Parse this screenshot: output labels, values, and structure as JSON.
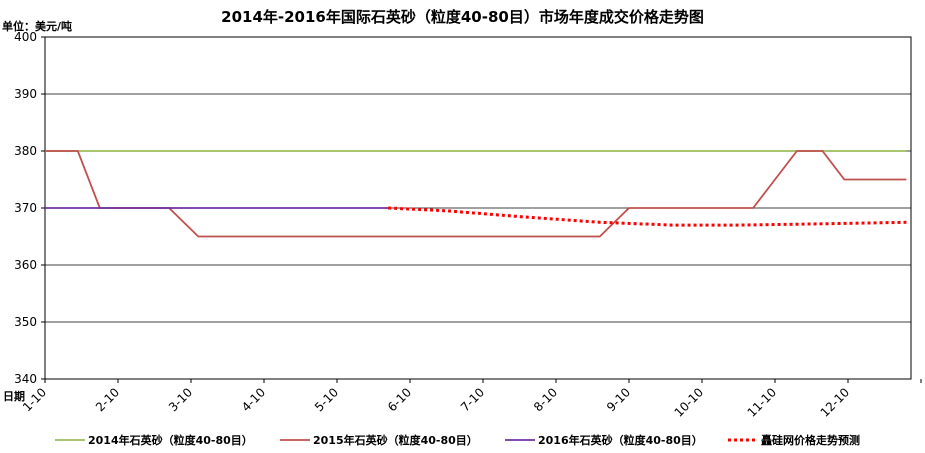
{
  "chart_data": {
    "type": "line",
    "title": "2014年-2016年国际石英砂（粒度40-80目）市场年度成交价格走势图",
    "ylabel": "单位：美元/吨",
    "xlabel": "日期",
    "ylim": [
      340,
      400
    ],
    "yticks": [
      "340",
      "350",
      "360",
      "370",
      "380",
      "390",
      "400"
    ],
    "categories": [
      "1-10",
      "2-10",
      "3-10",
      "4-10",
      "5-10",
      "6-10",
      "7-10",
      "8-10",
      "9-10",
      "10-10",
      "11-10",
      "12-10"
    ],
    "grid": true,
    "legend_position": "bottom",
    "series": [
      {
        "name": "2014年石英砂（粒度40-80目）",
        "color": "#9bbb59",
        "style": "solid",
        "points": [
          [
            0,
            380
          ],
          [
            11.8,
            380
          ]
        ]
      },
      {
        "name": "2015年石英砂（粒度40-80目）",
        "color": "#c0504d",
        "style": "solid",
        "points": [
          [
            0,
            380
          ],
          [
            0.45,
            380
          ],
          [
            0.75,
            370
          ],
          [
            1.7,
            370
          ],
          [
            2.1,
            365
          ],
          [
            7.6,
            365
          ],
          [
            8.0,
            370
          ],
          [
            9.7,
            370
          ],
          [
            10.3,
            380
          ],
          [
            10.65,
            380
          ],
          [
            10.95,
            375
          ],
          [
            11.8,
            375
          ]
        ]
      },
      {
        "name": "2016年石英砂（粒度40-80目）",
        "color": "#7030a0",
        "style": "solid",
        "points": [
          [
            0,
            370
          ],
          [
            4.7,
            370
          ]
        ]
      },
      {
        "name": "矗硅网价格走势预测",
        "color": "#ff0000",
        "style": "dotted",
        "points": [
          [
            4.7,
            370
          ],
          [
            5.5,
            369.5
          ],
          [
            6.5,
            368.5
          ],
          [
            7.6,
            367.5
          ],
          [
            8.6,
            367
          ],
          [
            9.5,
            367
          ],
          [
            10.5,
            367.2
          ],
          [
            11.8,
            367.5
          ]
        ]
      }
    ]
  }
}
